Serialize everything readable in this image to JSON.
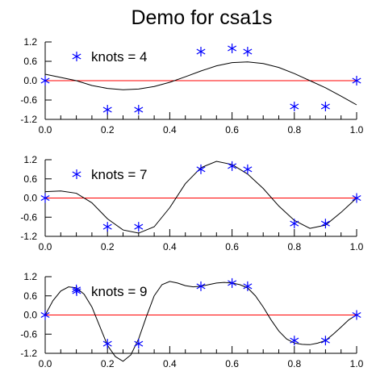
{
  "chart_data": [
    {
      "type": "line",
      "title": "Demo for csa1s",
      "legend_label": "knots = 4",
      "legend_placement": "top-left",
      "xlim": [
        0.0,
        1.0
      ],
      "ylim": [
        -1.2,
        1.2
      ],
      "xticks": [
        "0.0",
        "0.2",
        "0.4",
        "0.6",
        "0.8",
        "1.0"
      ],
      "yticks": [
        "-1.2",
        "-0.6",
        "0.0",
        "0.6",
        "1.2"
      ],
      "reference_line_y": 0.0,
      "data_points": {
        "x": [
          0.0,
          0.2,
          0.3,
          0.5,
          0.6,
          0.65,
          0.8,
          0.9,
          1.0
        ],
        "y": [
          0.0,
          -0.9,
          -0.9,
          0.9,
          1.0,
          0.9,
          -0.8,
          -0.8,
          0.0
        ]
      },
      "fit_curve": {
        "x": [
          0.0,
          0.05,
          0.1,
          0.15,
          0.2,
          0.25,
          0.3,
          0.35,
          0.4,
          0.45,
          0.5,
          0.55,
          0.6,
          0.65,
          0.7,
          0.75,
          0.8,
          0.85,
          0.9,
          0.95,
          1.0
        ],
        "y": [
          0.2,
          0.1,
          0.0,
          -0.15,
          -0.24,
          -0.28,
          -0.26,
          -0.18,
          -0.05,
          0.12,
          0.3,
          0.46,
          0.56,
          0.58,
          0.53,
          0.41,
          0.22,
          0.0,
          -0.22,
          -0.48,
          -0.75
        ]
      },
      "colors": {
        "points": "#0000ff",
        "curve": "#000000",
        "reference": "#ff0000"
      }
    },
    {
      "type": "line",
      "title": "",
      "legend_label": "knots = 7",
      "legend_placement": "top-left",
      "xlim": [
        0.0,
        1.0
      ],
      "ylim": [
        -1.2,
        1.2
      ],
      "xticks": [
        "0.0",
        "0.2",
        "0.4",
        "0.6",
        "0.8",
        "1.0"
      ],
      "yticks": [
        "-1.2",
        "-0.6",
        "0.0",
        "0.6",
        "1.2"
      ],
      "reference_line_y": 0.0,
      "data_points": {
        "x": [
          0.0,
          0.2,
          0.3,
          0.5,
          0.6,
          0.65,
          0.8,
          0.9,
          1.0
        ],
        "y": [
          0.0,
          -0.9,
          -0.9,
          0.9,
          1.0,
          0.9,
          -0.8,
          -0.8,
          0.0
        ]
      },
      "fit_curve": {
        "x": [
          0.0,
          0.05,
          0.1,
          0.15,
          0.2,
          0.25,
          0.3,
          0.35,
          0.4,
          0.45,
          0.5,
          0.55,
          0.6,
          0.65,
          0.7,
          0.75,
          0.8,
          0.85,
          0.9,
          0.95,
          1.0
        ],
        "y": [
          0.2,
          0.22,
          0.15,
          -0.15,
          -0.65,
          -1.0,
          -1.1,
          -0.9,
          -0.3,
          0.45,
          0.95,
          1.15,
          1.05,
          0.75,
          0.3,
          -0.25,
          -0.7,
          -0.95,
          -0.85,
          -0.45,
          0.0
        ]
      },
      "colors": {
        "points": "#0000ff",
        "curve": "#000000",
        "reference": "#ff0000"
      }
    },
    {
      "type": "line",
      "title": "",
      "legend_label": "knots = 9",
      "legend_placement": "top-left",
      "xlim": [
        0.0,
        1.0
      ],
      "ylim": [
        -1.2,
        1.2
      ],
      "xticks": [
        "0.0",
        "0.2",
        "0.4",
        "0.6",
        "0.8",
        "1.0"
      ],
      "yticks": [
        "-1.2",
        "-0.6",
        "0.0",
        "0.6",
        "1.2"
      ],
      "reference_line_y": 0.0,
      "data_points": {
        "x": [
          0.0,
          0.1,
          0.2,
          0.3,
          0.5,
          0.6,
          0.65,
          0.8,
          0.9,
          1.0
        ],
        "y": [
          0.0,
          0.8,
          -0.9,
          -0.9,
          0.9,
          1.0,
          0.9,
          -0.8,
          -0.8,
          0.0
        ]
      },
      "fit_curve": {
        "x": [
          0.0,
          0.025,
          0.05,
          0.075,
          0.1,
          0.125,
          0.15,
          0.175,
          0.2,
          0.225,
          0.25,
          0.275,
          0.3,
          0.325,
          0.35,
          0.375,
          0.4,
          0.425,
          0.45,
          0.475,
          0.5,
          0.525,
          0.55,
          0.575,
          0.6,
          0.625,
          0.65,
          0.675,
          0.7,
          0.725,
          0.75,
          0.775,
          0.8,
          0.825,
          0.85,
          0.875,
          0.9,
          0.925,
          0.95,
          0.975,
          1.0
        ],
        "y": [
          0.0,
          0.45,
          0.75,
          0.88,
          0.85,
          0.65,
          0.25,
          -0.35,
          -0.95,
          -1.3,
          -1.45,
          -1.25,
          -0.75,
          -0.05,
          0.6,
          0.95,
          1.05,
          1.0,
          0.92,
          0.88,
          0.9,
          0.95,
          1.0,
          1.02,
          1.0,
          0.95,
          0.85,
          0.6,
          0.25,
          -0.15,
          -0.5,
          -0.75,
          -0.88,
          -0.92,
          -0.93,
          -0.88,
          -0.8,
          -0.6,
          -0.38,
          -0.15,
          0.0
        ]
      },
      "colors": {
        "points": "#0000ff",
        "curve": "#000000",
        "reference": "#ff0000"
      }
    }
  ]
}
